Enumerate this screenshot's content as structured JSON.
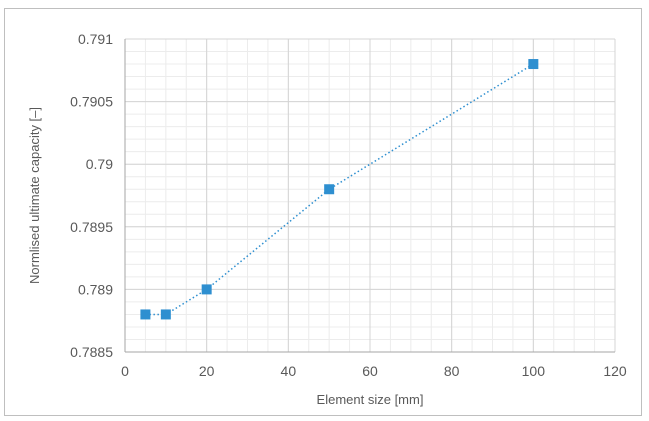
{
  "chart_data": {
    "type": "scatter",
    "xlabel": "Element size [mm]",
    "ylabel": "Normlised ultimate capacity [–]",
    "xlim": [
      0,
      120
    ],
    "ylim": [
      0.7885,
      0.791
    ],
    "x_ticks": [
      0,
      20,
      40,
      60,
      80,
      100,
      120
    ],
    "x_tick_labels": [
      "0",
      "20",
      "40",
      "60",
      "80",
      "100",
      "120"
    ],
    "y_ticks": [
      0.7885,
      0.789,
      0.7895,
      0.79,
      0.7905,
      0.791
    ],
    "y_tick_labels": [
      "0.7885",
      "0.789",
      "0.7895",
      "0.79",
      "0.7905",
      "0.791"
    ],
    "grid": true,
    "minor_grid": true,
    "legend": "none",
    "series": [
      {
        "x": [
          5,
          10,
          20,
          50,
          100
        ],
        "y": [
          0.7888,
          0.7888,
          0.789,
          0.7898,
          0.7908
        ],
        "marker": "square",
        "line": "dotted",
        "color": "#2e8fd0"
      }
    ]
  }
}
